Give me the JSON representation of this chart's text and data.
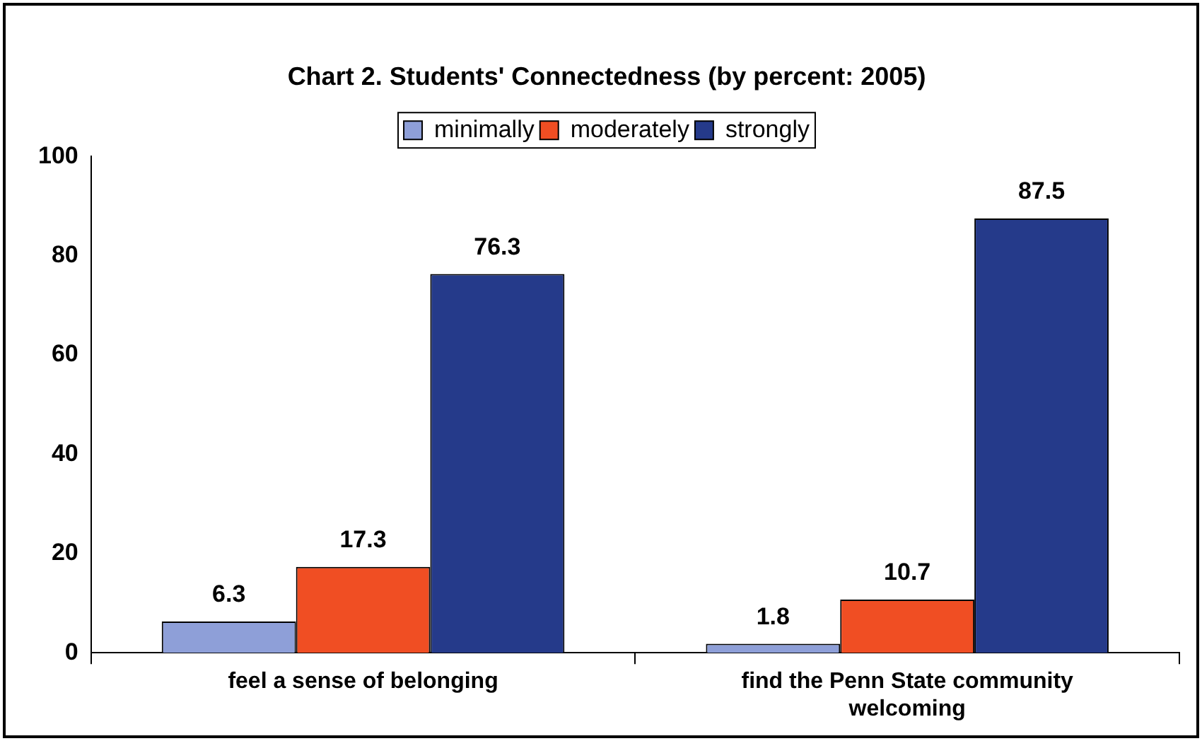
{
  "chart_data": {
    "type": "bar",
    "title": "Chart 2. Students' Connectedness (by percent: 2005)",
    "categories": [
      "feel a sense of belonging",
      "find the Penn State community welcoming"
    ],
    "series": [
      {
        "name": "minimally",
        "color": "#8e9fd8",
        "values": [
          6.3,
          1.8
        ]
      },
      {
        "name": "moderately",
        "color": "#f04e23",
        "values": [
          17.3,
          10.7
        ]
      },
      {
        "name": "strongly",
        "color": "#253a8a",
        "values": [
          76.3,
          87.5
        ]
      }
    ],
    "ylim": [
      0,
      100
    ],
    "yticks": [
      0,
      20,
      40,
      60,
      80,
      100
    ],
    "grid": false,
    "legend": "top",
    "data_labels": true
  }
}
